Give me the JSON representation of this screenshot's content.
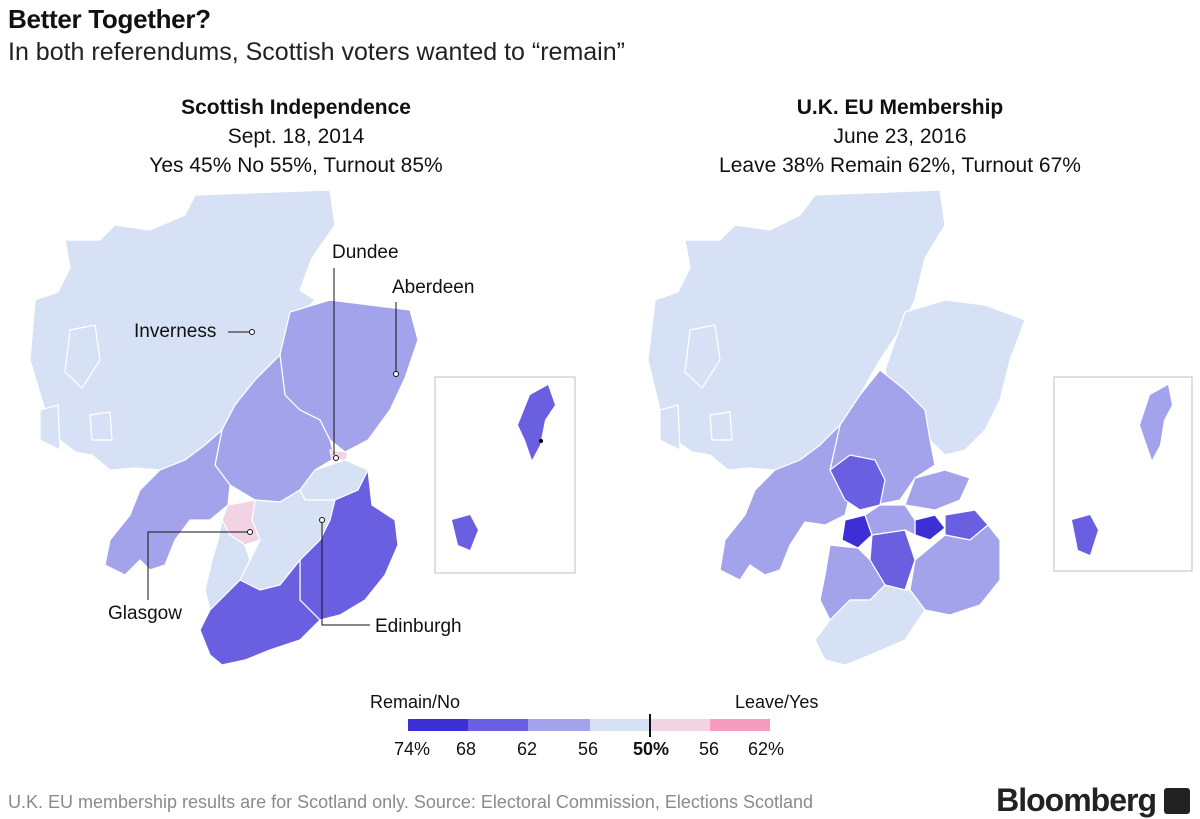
{
  "header": {
    "title": "Better Together?",
    "subtitle": "In both referendums, Scottish voters wanted to “remain”"
  },
  "maps": {
    "left": {
      "title": "Scottish Independence",
      "date": "Sept. 18, 2014",
      "summary": "Yes 45% No 55%, Turnout 85%",
      "cities": {
        "inverness": "Inverness",
        "dundee": "Dundee",
        "aberdeen": "Aberdeen",
        "glasgow": "Glasgow",
        "edinburgh": "Edinburgh"
      }
    },
    "right": {
      "title": "U.K. EU Membership",
      "date": "June 23, 2016",
      "summary": "Leave 38% Remain 62%, Turnout 67%"
    }
  },
  "legend": {
    "left_label": "Remain/No",
    "right_label": "Leave/Yes",
    "ticks": [
      "74%",
      "68",
      "62",
      "56",
      "50%",
      "56",
      "62%"
    ],
    "colors": [
      "#3d2fd6",
      "#6a5fe0",
      "#a3a3ec",
      "#d6e1f5",
      "#f2d3e3",
      "#f59cc0"
    ]
  },
  "colors": {
    "band1": "#3d2fd6",
    "band2": "#6a5fe0",
    "band3": "#a3a3ec",
    "band4": "#d6e1f5",
    "leave1": "#f2d3e3",
    "leave2": "#f59cc0",
    "stroke": "#ffffff"
  },
  "footer": {
    "note": "U.K. EU membership results are for Scotland only. Source: Electoral Commission, Elections Scotland",
    "brand": "Bloomberg"
  }
}
